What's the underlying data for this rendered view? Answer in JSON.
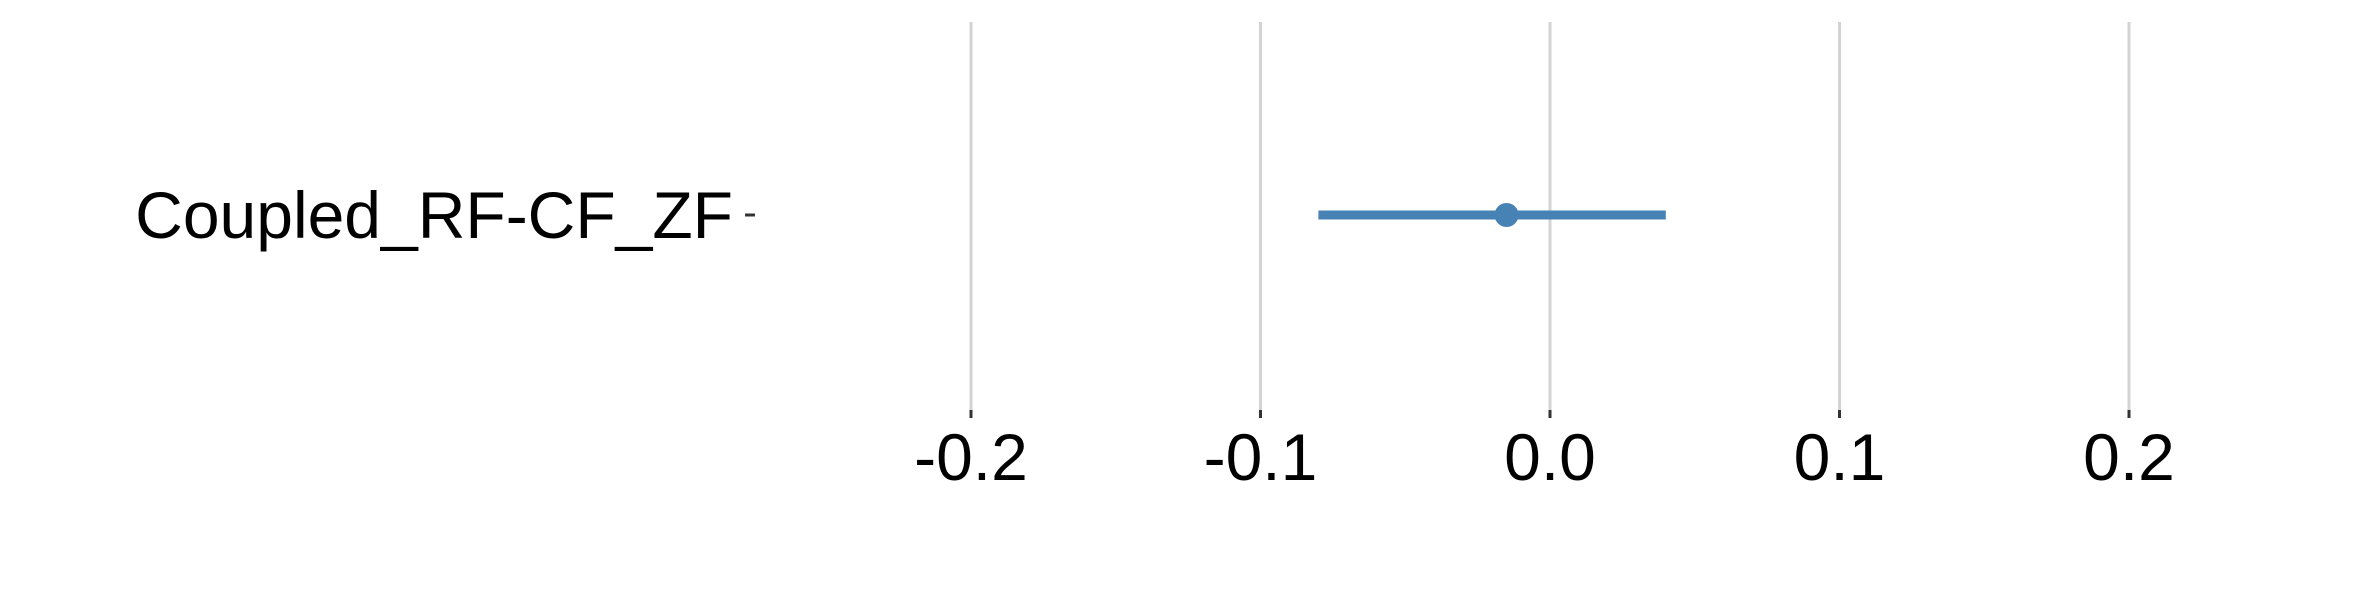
{
  "chart_data": {
    "type": "forest",
    "title": "",
    "xlabel": "",
    "ylabel": "",
    "xlim": [
      -0.2,
      0.2
    ],
    "xticks": [
      -0.2,
      -0.1,
      0.0,
      0.1,
      0.2
    ],
    "xtick_labels": [
      "-0.2",
      "-0.1",
      "0.0",
      "0.1",
      "0.2"
    ],
    "grid": "vertical",
    "legend": "none",
    "color": "#4682B4",
    "rows": [
      {
        "label": "Coupled_RF-CF_ZF",
        "estimate": -0.015,
        "lower": -0.08,
        "upper": 0.04
      }
    ]
  }
}
